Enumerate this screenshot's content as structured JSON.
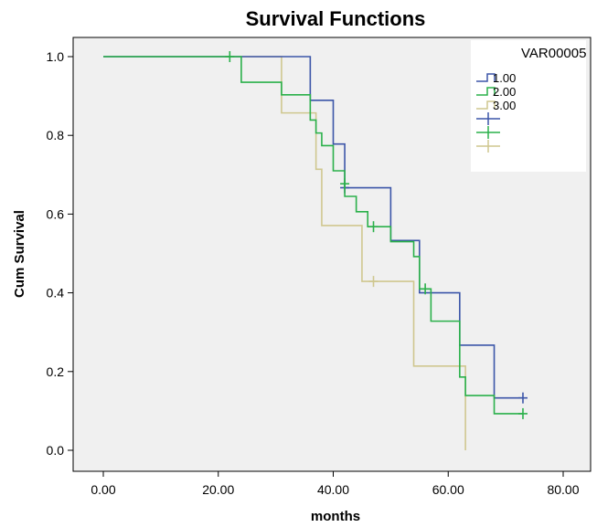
{
  "chart_data": {
    "type": "line",
    "subtype": "kaplan-meier step",
    "title": "Survival Functions",
    "xlabel": "months",
    "ylabel": "Cum Survival",
    "xlim": [
      0,
      80
    ],
    "ylim": [
      0,
      1.0
    ],
    "x_ticks": [
      "0.00",
      "20.00",
      "40.00",
      "60.00",
      "80.00"
    ],
    "y_ticks": [
      "0.0",
      "0.2",
      "0.4",
      "0.6",
      "0.8",
      "1.0"
    ],
    "grid": false,
    "background": "#f0f0f0",
    "legend": {
      "title": "VAR00005",
      "position": "top-right",
      "entries": [
        "1.00",
        "2.00",
        "3.00",
        "",
        "",
        ""
      ]
    },
    "series": [
      {
        "name": "1.00",
        "color": "#3b55a8",
        "steps": [
          [
            0,
            1.0
          ],
          [
            36,
            0.889
          ],
          [
            40,
            0.778
          ],
          [
            42,
            0.667
          ],
          [
            50,
            0.533
          ],
          [
            55,
            0.4
          ],
          [
            62,
            0.267
          ],
          [
            68,
            0.133
          ],
          [
            73,
            0.133
          ]
        ],
        "censored": [
          [
            42,
            0.667
          ],
          [
            73,
            0.133
          ]
        ]
      },
      {
        "name": "2.00",
        "color": "#2ab04a",
        "steps": [
          [
            0,
            1.0
          ],
          [
            24,
            0.935
          ],
          [
            31,
            0.903
          ],
          [
            36,
            0.839
          ],
          [
            37,
            0.806
          ],
          [
            38,
            0.774
          ],
          [
            40,
            0.71
          ],
          [
            42,
            0.645
          ],
          [
            44,
            0.606
          ],
          [
            46,
            0.568
          ],
          [
            50,
            0.53
          ],
          [
            54,
            0.492
          ],
          [
            55,
            0.41
          ],
          [
            57,
            0.328
          ],
          [
            62,
            0.186
          ],
          [
            63,
            0.139
          ],
          [
            68,
            0.093
          ],
          [
            73,
            0.093
          ]
        ],
        "censored": [
          [
            22,
            1.0
          ],
          [
            42,
            0.677
          ],
          [
            47,
            0.568
          ],
          [
            56,
            0.41
          ],
          [
            73,
            0.093
          ]
        ]
      },
      {
        "name": "3.00",
        "color": "#cfc78f",
        "steps": [
          [
            0,
            1.0
          ],
          [
            31,
            0.857
          ],
          [
            37,
            0.714
          ],
          [
            38,
            0.571
          ],
          [
            45,
            0.429
          ],
          [
            54,
            0.214
          ],
          [
            63,
            0.0
          ]
        ],
        "censored": [
          [
            47,
            0.429
          ]
        ]
      }
    ]
  }
}
